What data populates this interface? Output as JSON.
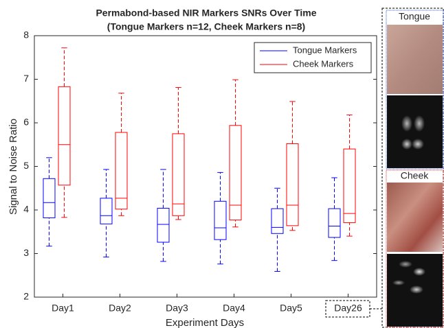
{
  "chart_data": {
    "type": "box",
    "title": "Permabond-based NIR Markers SNRs Over Time",
    "subtitle": "(Tongue Markers n=12, Cheek Markers n=8)",
    "x_label": "Experiment Days",
    "y_label": "Signal to Noise Ratio",
    "categories": [
      "Day1",
      "Day2",
      "Day3",
      "Day4",
      "Day5",
      "Day26"
    ],
    "ylim": [
      2,
      8
    ],
    "yticks": [
      2,
      3,
      4,
      5,
      6,
      7,
      8
    ],
    "legend": "upper right",
    "series": [
      {
        "name": "Tongue Markers",
        "color": "#0000ff",
        "whisker_low": [
          3.17,
          2.92,
          2.82,
          2.76,
          2.59,
          2.84
        ],
        "q1": [
          3.82,
          3.68,
          3.26,
          3.32,
          3.46,
          3.37
        ],
        "median": [
          4.17,
          3.87,
          3.67,
          3.59,
          3.6,
          3.63
        ],
        "q3": [
          4.72,
          4.27,
          4.04,
          4.2,
          4.03,
          4.03
        ],
        "whisker_high": [
          5.2,
          4.93,
          4.93,
          4.86,
          4.5,
          4.74
        ]
      },
      {
        "name": "Cheek Markers",
        "color": "#ff0000",
        "whisker_low": [
          3.83,
          3.87,
          3.78,
          3.61,
          3.53,
          3.4
        ],
        "q1": [
          4.57,
          4.02,
          3.87,
          3.77,
          3.64,
          3.71
        ],
        "median": [
          5.5,
          4.27,
          4.14,
          4.11,
          4.11,
          3.92
        ],
        "q3": [
          6.83,
          5.78,
          5.75,
          5.94,
          5.52,
          5.4
        ],
        "whisker_high": [
          7.72,
          6.68,
          6.81,
          6.99,
          6.49,
          6.18
        ]
      }
    ]
  },
  "side_panels": [
    {
      "label": "Tongue"
    },
    {
      "label": "Cheek"
    }
  ]
}
